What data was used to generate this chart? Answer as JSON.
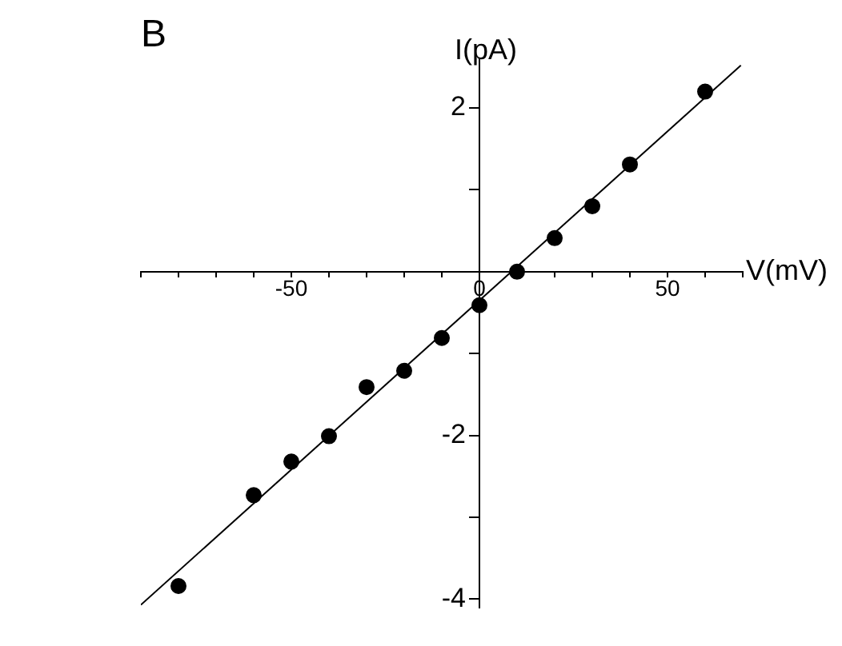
{
  "chart_data": {
    "type": "scatter",
    "title": "B",
    "xlabel": "V(mV)",
    "ylabel": "I(pA)",
    "xlim": [
      -90,
      70
    ],
    "ylim": [
      -4.1,
      2.6
    ],
    "xticks": [
      {
        "value": -90,
        "label": null
      },
      {
        "value": -80,
        "label": null
      },
      {
        "value": -70,
        "label": null
      },
      {
        "value": -60,
        "label": null
      },
      -50,
      {
        "value": -40,
        "label": null
      },
      {
        "value": -30,
        "label": null
      },
      {
        "value": -20,
        "label": null
      },
      {
        "value": -10,
        "label": null
      },
      0,
      {
        "value": 10,
        "label": null
      },
      {
        "value": 20,
        "label": null
      },
      {
        "value": 30,
        "label": null
      },
      {
        "value": 40,
        "label": null
      },
      50,
      {
        "value": 60,
        "label": null
      },
      {
        "value": 70,
        "label": null
      }
    ],
    "yticks": [
      -4,
      {
        "value": -3,
        "label": null
      },
      -2,
      {
        "value": -1,
        "label": null
      },
      {
        "value": 1,
        "label": null
      },
      2
    ],
    "grid": false,
    "legend": false,
    "marker": "circle",
    "series": [
      {
        "type": "scatter",
        "color": "#000000",
        "x": [
          -80,
          -60,
          -50,
          -40,
          -30,
          -20,
          -10,
          0,
          10,
          20,
          30,
          40,
          60
        ],
        "values": [
          -3.84,
          -2.73,
          -2.32,
          -2.01,
          -1.41,
          -1.21,
          -0.81,
          -0.41,
          0.0,
          0.41,
          0.8,
          1.31,
          2.2
        ]
      },
      {
        "type": "line",
        "color": "#000000",
        "marker": "none",
        "line_style": "solid",
        "x": [
          -90,
          69.5
        ],
        "values": [
          -4.07,
          2.52
        ]
      }
    ]
  }
}
